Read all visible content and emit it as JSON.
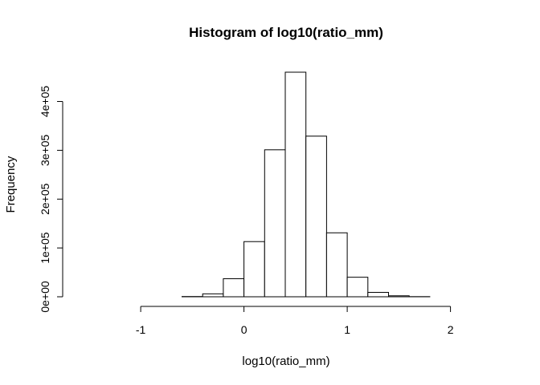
{
  "chart_data": {
    "type": "bar",
    "title": "Histogram of log10(ratio_mm)",
    "xlabel": "log10(ratio_mm)",
    "ylabel": "Frequency",
    "bin_width": 0.2,
    "bin_edges": [
      -1.6,
      -1.4,
      -1.2,
      -1.0,
      -0.8,
      -0.6,
      -0.4,
      -0.2,
      0.0,
      0.2,
      0.4,
      0.6,
      0.8,
      1.0,
      1.2,
      1.4,
      1.6,
      1.8,
      2.0,
      2.2,
      2.4
    ],
    "values": [
      0,
      0,
      0,
      0,
      0,
      500,
      6000,
      37000,
      113000,
      301000,
      460000,
      329000,
      131000,
      40000,
      9000,
      2000,
      300,
      0,
      0,
      0
    ],
    "xlim": [
      -1.6,
      2.4
    ],
    "ylim": [
      0,
      460000
    ],
    "x_ticks": [
      -1,
      0,
      1,
      2
    ],
    "x_tick_labels": [
      "-1",
      "0",
      "1",
      "2"
    ],
    "y_ticks": [
      0,
      100000,
      200000,
      300000,
      400000
    ],
    "y_tick_labels": [
      "0e+00",
      "1e+05",
      "2e+05",
      "3e+05",
      "4e+05"
    ],
    "grid": false,
    "legend": "none",
    "bar_fill": "#ffffff",
    "bar_stroke": "#000000"
  }
}
